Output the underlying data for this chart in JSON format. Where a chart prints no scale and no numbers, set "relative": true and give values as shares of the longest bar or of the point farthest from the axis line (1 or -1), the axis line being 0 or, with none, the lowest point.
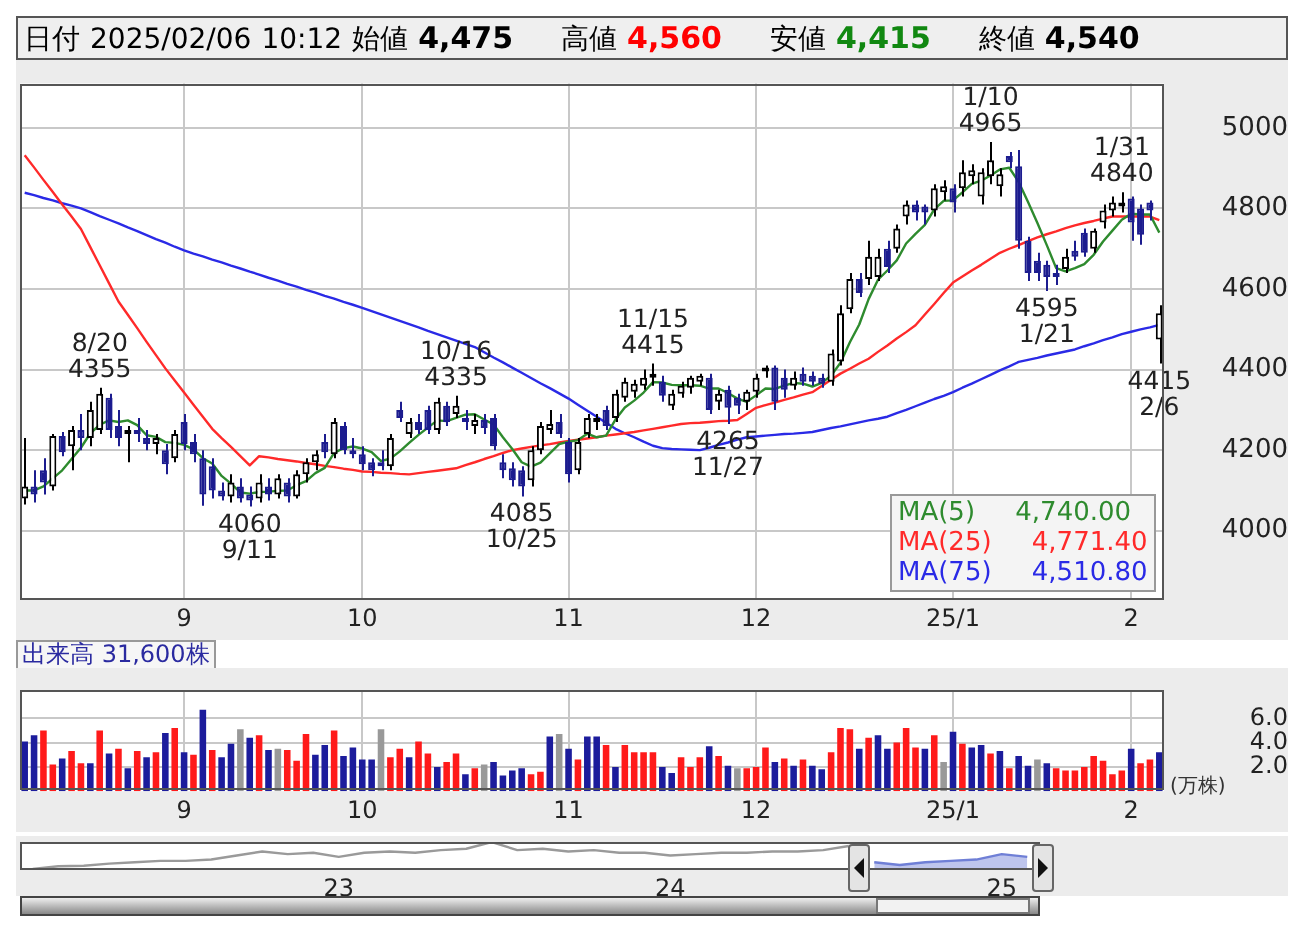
{
  "chart_data": [
    {
      "type": "candlestick",
      "title": "日付 2025/02/06 10:12 始値 4,475 高値 4,560 安値 4,415 終値 4,540",
      "categories": [
        null,
        null,
        null,
        null,
        null,
        null,
        null,
        null,
        null,
        null,
        null,
        null,
        null,
        null,
        null,
        null,
        null,
        "9",
        null,
        null,
        null,
        null,
        null,
        null,
        null,
        null,
        null,
        null,
        null,
        null,
        null,
        null,
        null,
        null,
        null,
        null,
        "10",
        null,
        null,
        null,
        null,
        null,
        null,
        null,
        null,
        null,
        null,
        null,
        null,
        null,
        null,
        null,
        null,
        null,
        null,
        null,
        null,
        null,
        "11",
        null,
        null,
        null,
        null,
        null,
        null,
        null,
        null,
        null,
        null,
        null,
        null,
        null,
        null,
        null,
        null,
        null,
        null,
        null,
        "12",
        null,
        null,
        null,
        null,
        null,
        null,
        null,
        null,
        null,
        null,
        null,
        null,
        null,
        null,
        null,
        null,
        null,
        null,
        null,
        null,
        "25/1",
        null,
        null,
        null,
        null,
        null,
        null,
        null,
        null,
        null,
        null,
        null,
        null,
        null,
        null,
        null,
        null,
        null,
        null,
        "2",
        null,
        null,
        null
      ],
      "ohlc": [
        [
          4080,
          4230,
          4065,
          4110
        ],
        [
          4110,
          4150,
          4070,
          4090
        ],
        [
          4150,
          4180,
          4090,
          4120
        ],
        [
          4110,
          4240,
          4100,
          4235
        ],
        [
          4235,
          4245,
          4185,
          4195
        ],
        [
          4210,
          4260,
          4150,
          4250
        ],
        [
          4250,
          4290,
          4200,
          4230
        ],
        [
          4230,
          4320,
          4210,
          4300
        ],
        [
          4250,
          4355,
          4240,
          4340
        ],
        [
          4330,
          4340,
          4230,
          4250
        ],
        [
          4260,
          4300,
          4210,
          4230
        ],
        [
          4240,
          4260,
          4170,
          4250
        ],
        [
          4250,
          4280,
          4220,
          4240
        ],
        [
          4230,
          4250,
          4200,
          4215
        ],
        [
          4215,
          4240,
          4190,
          4230
        ],
        [
          4200,
          4215,
          4140,
          4165
        ],
        [
          4180,
          4250,
          4170,
          4240
        ],
        [
          4270,
          4290,
          4200,
          4215
        ],
        [
          4220,
          4240,
          4170,
          4190
        ],
        [
          4180,
          4200,
          4062,
          4090
        ],
        [
          4160,
          4180,
          4080,
          4100
        ],
        [
          4100,
          4120,
          4075,
          4085
        ],
        [
          4085,
          4140,
          4070,
          4120
        ],
        [
          4110,
          4130,
          4070,
          4080
        ],
        [
          4090,
          4110,
          4060,
          4075
        ],
        [
          4080,
          4140,
          4070,
          4120
        ],
        [
          4110,
          4130,
          4075,
          4090
        ],
        [
          4090,
          4140,
          4080,
          4130
        ],
        [
          4120,
          4130,
          4070,
          4085
        ],
        [
          4085,
          4150,
          4080,
          4140
        ],
        [
          4140,
          4180,
          4120,
          4170
        ],
        [
          4170,
          4200,
          4150,
          4190
        ],
        [
          4220,
          4240,
          4180,
          4195
        ],
        [
          4190,
          4280,
          4180,
          4270
        ],
        [
          4260,
          4270,
          4190,
          4200
        ],
        [
          4200,
          4230,
          4180,
          4190
        ],
        [
          4190,
          4210,
          4150,
          4165
        ],
        [
          4170,
          4180,
          4135,
          4150
        ],
        [
          4170,
          4200,
          4150,
          4160
        ],
        [
          4160,
          4240,
          4150,
          4230
        ],
        [
          4300,
          4320,
          4270,
          4280
        ],
        [
          4240,
          4280,
          4230,
          4270
        ],
        [
          4270,
          4290,
          4240,
          4250
        ],
        [
          4300,
          4310,
          4240,
          4250
        ],
        [
          4250,
          4330,
          4240,
          4320
        ],
        [
          4310,
          4320,
          4260,
          4270
        ],
        [
          4290,
          4335,
          4280,
          4310
        ],
        [
          4280,
          4300,
          4250,
          4270
        ],
        [
          4260,
          4290,
          4240,
          4275
        ],
        [
          4275,
          4290,
          4240,
          4255
        ],
        [
          4280,
          4290,
          4200,
          4210
        ],
        [
          4170,
          4190,
          4130,
          4150
        ],
        [
          4155,
          4170,
          4110,
          4125
        ],
        [
          4150,
          4160,
          4085,
          4110
        ],
        [
          4125,
          4210,
          4110,
          4200
        ],
        [
          4200,
          4270,
          4190,
          4260
        ],
        [
          4250,
          4300,
          4240,
          4265
        ],
        [
          4270,
          4290,
          4230,
          4240
        ],
        [
          4220,
          4230,
          4120,
          4140
        ],
        [
          4150,
          4230,
          4140,
          4220
        ],
        [
          4240,
          4290,
          4230,
          4280
        ],
        [
          4270,
          4290,
          4250,
          4280
        ],
        [
          4300,
          4310,
          4250,
          4260
        ],
        [
          4280,
          4350,
          4270,
          4340
        ],
        [
          4330,
          4380,
          4320,
          4370
        ],
        [
          4345,
          4375,
          4330,
          4365
        ],
        [
          4360,
          4400,
          4350,
          4380
        ],
        [
          4380,
          4415,
          4360,
          4390
        ],
        [
          4370,
          4385,
          4320,
          4335
        ],
        [
          4310,
          4350,
          4300,
          4340
        ],
        [
          4340,
          4370,
          4330,
          4360
        ],
        [
          4355,
          4385,
          4340,
          4380
        ],
        [
          4370,
          4390,
          4360,
          4385
        ],
        [
          4380,
          4390,
          4290,
          4300
        ],
        [
          4320,
          4350,
          4300,
          4340
        ],
        [
          4350,
          4360,
          4265,
          4305
        ],
        [
          4330,
          4340,
          4290,
          4310
        ],
        [
          4320,
          4350,
          4300,
          4345
        ],
        [
          4345,
          4390,
          4330,
          4380
        ],
        [
          4395,
          4410,
          4380,
          4405
        ],
        [
          4405,
          4410,
          4300,
          4320
        ],
        [
          4380,
          4400,
          4330,
          4350
        ],
        [
          4360,
          4395,
          4350,
          4380
        ],
        [
          4390,
          4405,
          4360,
          4370
        ],
        [
          4385,
          4395,
          4360,
          4370
        ],
        [
          4380,
          4390,
          4355,
          4365
        ],
        [
          4370,
          4450,
          4360,
          4440
        ],
        [
          4420,
          4560,
          4410,
          4540
        ],
        [
          4550,
          4640,
          4540,
          4625
        ],
        [
          4625,
          4640,
          4580,
          4590
        ],
        [
          4625,
          4720,
          4610,
          4680
        ],
        [
          4630,
          4700,
          4620,
          4680
        ],
        [
          4700,
          4720,
          4640,
          4655
        ],
        [
          4700,
          4760,
          4690,
          4750
        ],
        [
          4780,
          4820,
          4760,
          4810
        ],
        [
          4810,
          4820,
          4770,
          4790
        ],
        [
          4805,
          4810,
          4760,
          4790
        ],
        [
          4795,
          4860,
          4780,
          4850
        ],
        [
          4840,
          4870,
          4820,
          4855
        ],
        [
          4850,
          4860,
          4790,
          4815
        ],
        [
          4850,
          4920,
          4830,
          4890
        ],
        [
          4880,
          4910,
          4860,
          4895
        ],
        [
          4830,
          4900,
          4810,
          4890
        ],
        [
          4880,
          4965,
          4860,
          4920
        ],
        [
          4855,
          4900,
          4830,
          4885
        ],
        [
          4930,
          4940,
          4900,
          4915
        ],
        [
          4905,
          4945,
          4700,
          4720
        ],
        [
          4720,
          4730,
          4620,
          4640
        ],
        [
          4670,
          4690,
          4620,
          4640
        ],
        [
          4660,
          4670,
          4595,
          4630
        ],
        [
          4640,
          4660,
          4610,
          4630
        ],
        [
          4650,
          4700,
          4640,
          4680
        ],
        [
          4695,
          4720,
          4670,
          4680
        ],
        [
          4740,
          4750,
          4680,
          4690
        ],
        [
          4700,
          4750,
          4690,
          4745
        ],
        [
          4765,
          4810,
          4750,
          4795
        ],
        [
          4795,
          4830,
          4780,
          4815
        ],
        [
          4805,
          4840,
          4790,
          4815
        ],
        [
          4825,
          4830,
          4720,
          4765
        ],
        [
          4800,
          4810,
          4710,
          4735
        ],
        [
          4815,
          4820,
          4770,
          4795
        ],
        [
          4475,
          4560,
          4415,
          4540
        ]
      ],
      "series": [
        {
          "name": "MA(5)",
          "type": "line",
          "color": "#2e8b2e",
          "values": [
            4100,
            4100,
            4110,
            4130,
            4150,
            4178,
            4206,
            4242,
            4263,
            4274,
            4270,
            4274,
            4262,
            4237,
            4233,
            4220,
            4218,
            4213,
            4202,
            4180,
            4167,
            4136,
            4117,
            4095,
            4092,
            4096,
            4097,
            4099,
            4100,
            4113,
            4123,
            4143,
            4156,
            4193,
            4205,
            4209,
            4204,
            4195,
            4173,
            4179,
            4197,
            4218,
            4238,
            4256,
            4274,
            4272,
            4280,
            4288,
            4289,
            4276,
            4264,
            4232,
            4203,
            4170,
            4159,
            4169,
            4192,
            4215,
            4221,
            4225,
            4241,
            4232,
            4236,
            4276,
            4306,
            4323,
            4343,
            4369,
            4368,
            4362,
            4361,
            4361,
            4360,
            4353,
            4353,
            4342,
            4328,
            4320,
            4336,
            4353,
            4352,
            4360,
            4367,
            4365,
            4358,
            4367,
            4385,
            4417,
            4468,
            4512,
            4575,
            4623,
            4646,
            4671,
            4713,
            4737,
            4759,
            4798,
            4819,
            4820,
            4840,
            4861,
            4869,
            4882,
            4897,
            4901,
            4866,
            4816,
            4764,
            4709,
            4652,
            4644,
            4652,
            4662,
            4685,
            4718,
            4745,
            4772,
            4787,
            4785,
            4785,
            4740
          ]
        },
        {
          "name": "MA(25)",
          "type": "line",
          "color": "#ff2a2a",
          "values": [
            4932,
            4902,
            4871,
            4841,
            4810,
            4780,
            4749,
            4704,
            4659,
            4614,
            4569,
            4536,
            4503,
            4469,
            4436,
            4403,
            4373,
            4343,
            4313,
            4283,
            4253,
            4230,
            4208,
            4185,
            4162,
            4185,
            4182,
            4178,
            4175,
            4172,
            4168,
            4165,
            4161,
            4158,
            4154,
            4151,
            4147,
            4146,
            4144,
            4143,
            4141,
            4140,
            4143,
            4146,
            4149,
            4152,
            4155,
            4163,
            4170,
            4178,
            4185,
            4193,
            4200,
            4204,
            4208,
            4212,
            4215,
            4219,
            4223,
            4226,
            4229,
            4232,
            4236,
            4239,
            4242,
            4245,
            4249,
            4253,
            4257,
            4261,
            4265,
            4267,
            4268,
            4270,
            4272,
            4273,
            4275,
            4290,
            4305,
            4312,
            4318,
            4325,
            4331,
            4338,
            4344,
            4359,
            4375,
            4390,
            4402,
            4415,
            4427,
            4444,
            4460,
            4477,
            4493,
            4510,
            4537,
            4563,
            4590,
            4616,
            4631,
            4646,
            4660,
            4675,
            4690,
            4700,
            4709,
            4719,
            4728,
            4736,
            4743,
            4751,
            4758,
            4764,
            4769,
            4775,
            4780,
            4780,
            4780,
            4780,
            4780,
            4771
          ]
        },
        {
          "name": "MA(75)",
          "type": "line",
          "color": "#2a2ae6",
          "values": [
            4839,
            4833,
            4826,
            4820,
            4813,
            4807,
            4800,
            4791,
            4781,
            4772,
            4763,
            4753,
            4744,
            4734,
            4724,
            4715,
            4705,
            4696,
            4688,
            4681,
            4673,
            4666,
            4658,
            4651,
            4643,
            4636,
            4628,
            4621,
            4613,
            4606,
            4598,
            4591,
            4583,
            4576,
            4568,
            4561,
            4553,
            4545,
            4537,
            4529,
            4521,
            4513,
            4505,
            4496,
            4488,
            4480,
            4472,
            4464,
            4456,
            4443,
            4430,
            4418,
            4405,
            4392,
            4379,
            4366,
            4354,
            4341,
            4328,
            4313,
            4298,
            4283,
            4268,
            4253,
            4242,
            4232,
            4221,
            4211,
            4205,
            4203,
            4202,
            4201,
            4200,
            4206,
            4213,
            4219,
            4226,
            4232,
            4234,
            4236,
            4238,
            4240,
            4241,
            4243,
            4245,
            4250,
            4255,
            4259,
            4264,
            4269,
            4274,
            4278,
            4283,
            4292,
            4300,
            4309,
            4318,
            4327,
            4335,
            4344,
            4355,
            4365,
            4376,
            4387,
            4398,
            4408,
            4419,
            4424,
            4429,
            4435,
            4440,
            4445,
            4450,
            4458,
            4465,
            4473,
            4480,
            4488,
            4494,
            4500,
            4505,
            4511
          ]
        }
      ],
      "ylim": [
        3830,
        5110
      ],
      "yticks": [
        4000,
        4200,
        4400,
        4600,
        4800,
        5000
      ],
      "grid": true,
      "legend": "bottom right",
      "marker": "none",
      "annotations": [
        "4,740.00",
        "4,771.40",
        "4,510.80",
        {
          "text": "8/20\n4355",
          "y": 4355
        },
        {
          "text": "4060\n9/11",
          "y": 4060
        },
        {
          "text": "10/16\n4335",
          "y": 4335
        },
        {
          "text": "4085\n10/25",
          "y": 4085
        },
        {
          "text": "11/15\n4415",
          "y": 4415
        },
        {
          "text": "4265\n11/27",
          "y": 4265
        },
        {
          "text": "1/10\n4965",
          "y": 4965
        },
        {
          "text": "4595\n1/21",
          "y": 4595
        },
        {
          "text": "1/31\n4840",
          "y": 4840
        },
        {
          "text": "4415\n2/6",
          "y": 4415
        }
      ]
    },
    {
      "type": "bar",
      "title": "出来高 31,600株",
      "ylabel": "(万株)",
      "categories": [
        null,
        null,
        null,
        null,
        null,
        null,
        null,
        null,
        null,
        null,
        null,
        null,
        null,
        null,
        null,
        null,
        null,
        "9",
        null,
        null,
        null,
        null,
        null,
        null,
        null,
        null,
        null,
        null,
        null,
        null,
        null,
        null,
        null,
        null,
        null,
        null,
        "10",
        null,
        null,
        null,
        null,
        null,
        null,
        null,
        null,
        null,
        null,
        null,
        null,
        null,
        null,
        null,
        null,
        null,
        null,
        null,
        null,
        null,
        "11",
        null,
        null,
        null,
        null,
        null,
        null,
        null,
        null,
        null,
        null,
        null,
        null,
        null,
        null,
        null,
        null,
        null,
        null,
        null,
        "12",
        null,
        null,
        null,
        null,
        null,
        null,
        null,
        null,
        null,
        null,
        null,
        null,
        null,
        null,
        null,
        null,
        null,
        null,
        null,
        null,
        "25/1",
        null,
        null,
        null,
        null,
        null,
        null,
        null,
        null,
        null,
        null,
        null,
        null,
        null,
        null,
        null,
        null,
        null,
        null,
        "2",
        null,
        null,
        null
      ],
      "values": [
        4.1,
        4.6,
        5.0,
        2.2,
        2.7,
        3.3,
        2.3,
        2.3,
        5.0,
        3.1,
        3.5,
        1.9,
        3.3,
        2.8,
        3.2,
        4.8,
        5.2,
        3.2,
        3.0,
        6.7,
        3.4,
        2.8,
        3.9,
        5.1,
        4.4,
        4.6,
        3.4,
        3.5,
        3.4,
        2.5,
        4.7,
        3.0,
        3.8,
        5.0,
        2.9,
        3.6,
        2.6,
        2.6,
        5.1,
        2.8,
        3.5,
        2.8,
        4.1,
        3.1,
        2.0,
        2.4,
        3.1,
        1.4,
        1.9,
        2.2,
        2.4,
        1.3,
        1.7,
        1.9,
        1.4,
        1.6,
        4.5,
        4.7,
        3.5,
        2.6,
        4.5,
        4.5,
        3.8,
        2.0,
        3.8,
        3.2,
        3.2,
        3.2,
        2.0,
        1.5,
        2.8,
        2.0,
        2.8,
        3.7,
        2.9,
        2.1,
        1.9,
        1.9,
        2.0,
        3.6,
        2.4,
        2.7,
        2.1,
        2.6,
        2.1,
        1.8,
        3.2,
        5.2,
        5.1,
        3.5,
        4.4,
        4.6,
        3.5,
        4.0,
        5.2,
        3.6,
        3.5,
        4.6,
        2.4,
        4.9,
        3.9,
        3.6,
        3.8,
        3.1,
        3.3,
        1.9,
        2.9,
        2.1,
        2.6,
        2.3,
        1.9,
        1.7,
        1.7,
        2.0,
        2.9,
        2.5,
        1.4,
        1.7,
        3.5,
        2.3,
        2.6,
        3.2
      ],
      "colors": [
        "#1c1c9c",
        "#1c1c9c",
        "#ff1a1a",
        "#ff1a1a",
        "#1c1c9c",
        "#ff1a1a",
        "#ff1a1a",
        "#1c1c9c",
        "#ff1a1a",
        "#1c1c9c",
        "#ff1a1a",
        "#1c1c9c",
        "#ff1a1a",
        "#1c1c9c",
        "#ff1a1a",
        "#1c1c9c",
        "#ff1a1a",
        "#1c1c9c",
        "#ff1a1a",
        "#1c1c9c",
        "#ff1a1a",
        "#1c1c9c",
        "#1c1c9c",
        "#999999",
        "#1c1c9c",
        "#ff1a1a",
        "#1c1c9c",
        "#999999",
        "#ff1a1a",
        "#ff1a1a",
        "#ff1a1a",
        "#1c1c9c",
        "#1c1c9c",
        "#ff1a1a",
        "#1c1c9c",
        "#1c1c9c",
        "#1c1c9c",
        "#1c1c9c",
        "#999999",
        "#ff1a1a",
        "#ff1a1a",
        "#1c1c9c",
        "#ff1a1a",
        "#ff1a1a",
        "#1c1c9c",
        "#ff1a1a",
        "#ff1a1a",
        "#1c1c9c",
        "#ff1a1a",
        "#999999",
        "#1c1c9c",
        "#1c1c9c",
        "#1c1c9c",
        "#1c1c9c",
        "#ff1a1a",
        "#ff1a1a",
        "#1c1c9c",
        "#999999",
        "#1c1c9c",
        "#ff1a1a",
        "#1c1c9c",
        "#1c1c9c",
        "#ff1a1a",
        "#1c1c9c",
        "#ff1a1a",
        "#ff1a1a",
        "#ff1a1a",
        "#ff1a1a",
        "#1c1c9c",
        "#1c1c9c",
        "#ff1a1a",
        "#ff1a1a",
        "#ff1a1a",
        "#1c1c9c",
        "#ff1a1a",
        "#1c1c9c",
        "#999999",
        "#ff1a1a",
        "#ff1a1a",
        "#ff1a1a",
        "#1c1c9c",
        "#ff1a1a",
        "#1c1c9c",
        "#ff1a1a",
        "#1c1c9c",
        "#1c1c9c",
        "#ff1a1a",
        "#ff1a1a",
        "#ff1a1a",
        "#1c1c9c",
        "#ff1a1a",
        "#1c1c9c",
        "#1c1c9c",
        "#ff1a1a",
        "#ff1a1a",
        "#ff1a1a",
        "#1c1c9c",
        "#ff1a1a",
        "#999999",
        "#1c1c9c",
        "#ff1a1a",
        "#1c1c9c",
        "#1c1c9c",
        "#ff1a1a",
        "#1c1c9c",
        "#ff1a1a",
        "#1c1c9c",
        "#1c1c9c",
        "#999999",
        "#1c1c9c",
        "#ff1a1a",
        "#ff1a1a",
        "#ff1a1a",
        "#ff1a1a",
        "#ff1a1a",
        "#ff1a1a",
        "#ff1a1a",
        "#ff1a1a",
        "#1c1c9c",
        "#ff1a1a",
        "#ff1a1a",
        "#1c1c9c"
      ],
      "ylim": [
        0,
        8.3
      ],
      "yticks": [
        {
          "value": 2,
          "label": "2.0"
        },
        {
          "value": 4,
          "label": "4.0"
        },
        {
          "value": 6,
          "label": "6.0"
        }
      ],
      "grid": true
    },
    {
      "type": "line",
      "relative": true,
      "grid": false,
      "marker": "none",
      "categories": [
        null,
        null,
        null,
        null,
        null,
        null,
        null,
        null,
        null,
        null,
        null,
        null,
        "23",
        null,
        null,
        null,
        null,
        null,
        null,
        null,
        null,
        null,
        null,
        null,
        null,
        "24",
        null,
        null,
        null,
        null,
        null,
        null,
        null,
        null,
        null,
        null,
        null,
        null,
        "25",
        null
      ],
      "series": [
        {
          "type": "line",
          "color": "#9a9a9a",
          "values": [
            0,
            0.1,
            0.12,
            0.2,
            0.25,
            0.3,
            0.3,
            0.35,
            0.5,
            0.65,
            0.55,
            0.6,
            0.45,
            0.6,
            0.65,
            0.6,
            0.7,
            0.75,
            1,
            0.7,
            0.75,
            0.65,
            0.7,
            0.6,
            0.6,
            0.5,
            0.55,
            0.6,
            0.6,
            0.65,
            0.65,
            0.7,
            0.85,
            null,
            null,
            null,
            null,
            null,
            null,
            null
          ]
        },
        {
          "type": "area",
          "color": "#6f7fd6",
          "values": [
            null,
            null,
            null,
            null,
            null,
            null,
            null,
            null,
            null,
            null,
            null,
            null,
            null,
            null,
            null,
            null,
            null,
            null,
            null,
            null,
            null,
            null,
            null,
            null,
            null,
            null,
            null,
            null,
            null,
            null,
            null,
            null,
            null,
            0.25,
            0.15,
            0.25,
            0.3,
            0.35,
            0.55,
            0.45
          ]
        }
      ]
    }
  ]
}
